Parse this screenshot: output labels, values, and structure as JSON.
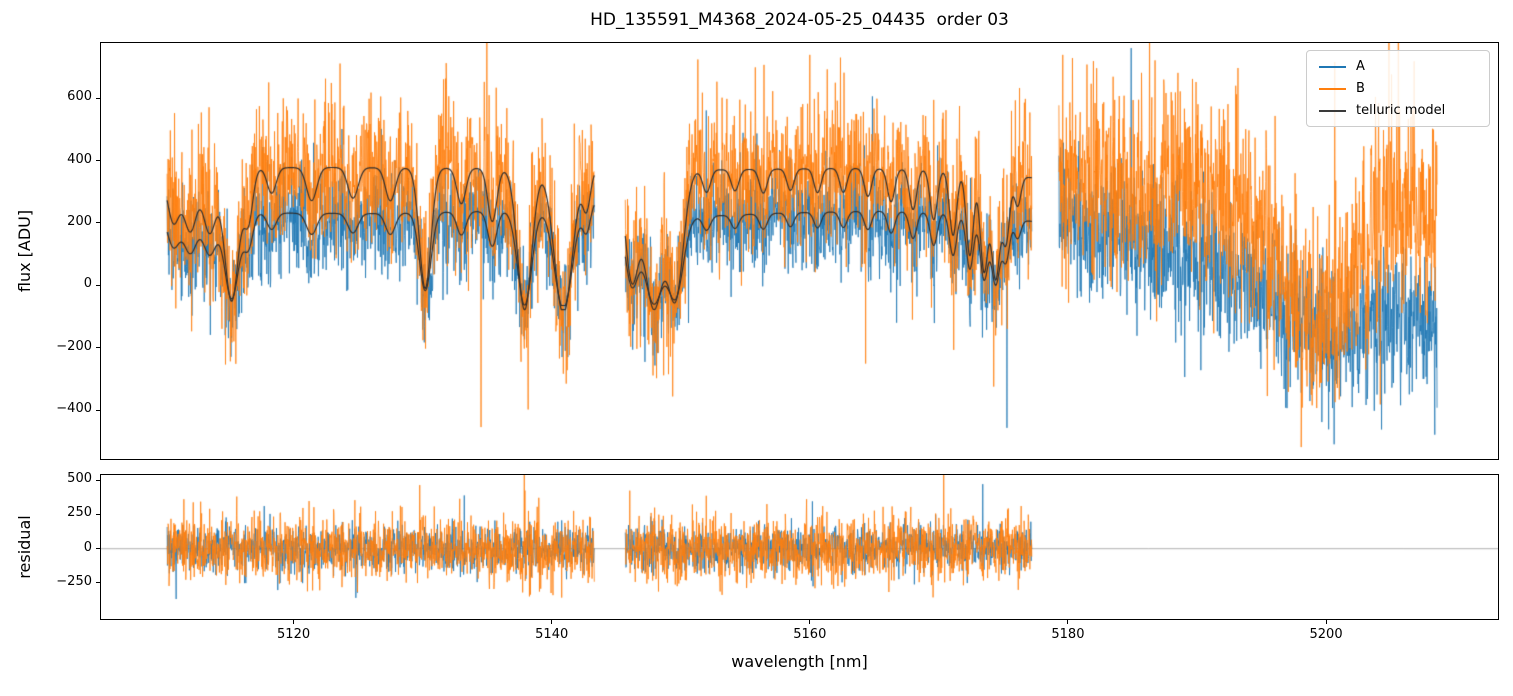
{
  "chart_data": {
    "type": "line",
    "title": "HD_135591_M4368_2024-05-25_04435  order 03",
    "xlabel": "wavelength [nm]",
    "xlim": [
      5105,
      5213.4
    ],
    "xticks": [
      {
        "v": 5120,
        "label": "5120"
      },
      {
        "v": 5140,
        "label": "5140"
      },
      {
        "v": 5160,
        "label": "5160"
      },
      {
        "v": 5180,
        "label": "5180"
      },
      {
        "v": 5200,
        "label": "5200"
      }
    ],
    "panels": {
      "flux": {
        "ylabel": "flux [ADU]",
        "ylim": [
          -560,
          780
        ],
        "yticks": [
          {
            "v": 600,
            "label": "600"
          },
          {
            "v": 400,
            "label": "400"
          },
          {
            "v": 200,
            "label": "200"
          },
          {
            "v": 0,
            "label": "0"
          },
          {
            "v": -200,
            "label": "−200"
          },
          {
            "v": -400,
            "label": "−400"
          }
        ]
      },
      "residual": {
        "ylabel": "residual",
        "ylim": [
          -520,
          545
        ],
        "yticks": [
          {
            "v": 500,
            "label": "500"
          },
          {
            "v": 250,
            "label": "250"
          },
          {
            "v": 0,
            "label": "0"
          },
          {
            "v": -250,
            "label": "−250"
          }
        ]
      }
    },
    "legend": [
      {
        "label": "A",
        "color": "#1f77b4"
      },
      {
        "label": "B",
        "color": "#ff7f0e"
      },
      {
        "label": "telluric model",
        "color": "#3a3a3a"
      }
    ],
    "zero_line_color": "#9a9a9a",
    "sampling": {
      "step_nm": 0.025,
      "seed": 12
    },
    "segments": [
      {
        "x_start": 5110.2,
        "x_end": 5143.3,
        "has_model": true,
        "has_residual": true
      },
      {
        "x_start": 5145.7,
        "x_end": 5177.2,
        "has_model": true,
        "has_residual": true
      },
      {
        "x_start": 5179.3,
        "x_end": 5208.6,
        "has_model": false,
        "has_residual": false
      }
    ],
    "telluric_lines": [
      [
        5110.7,
        0.4,
        0.45
      ],
      [
        5112.0,
        0.48,
        0.5
      ],
      [
        5113.5,
        0.5,
        0.5
      ],
      [
        5115.2,
        1.05,
        0.55
      ],
      [
        5116.5,
        0.4,
        0.35
      ],
      [
        5118.3,
        0.2,
        0.35
      ],
      [
        5121.4,
        0.26,
        0.4
      ],
      [
        5124.6,
        0.24,
        0.4
      ],
      [
        5127.5,
        0.26,
        0.38
      ],
      [
        5130.2,
        0.95,
        0.45
      ],
      [
        5133.0,
        0.28,
        0.35
      ],
      [
        5135.4,
        0.42,
        0.35
      ],
      [
        5137.9,
        1.12,
        0.55
      ],
      [
        5140.9,
        1.15,
        0.7
      ],
      [
        5142.7,
        0.3,
        0.3
      ],
      [
        5146.2,
        0.85,
        0.5
      ],
      [
        5147.9,
        1.1,
        0.7
      ],
      [
        5149.6,
        1.0,
        0.6
      ],
      [
        5152.0,
        0.18,
        0.3
      ],
      [
        5154.2,
        0.17,
        0.3
      ],
      [
        5156.4,
        0.19,
        0.3
      ],
      [
        5158.5,
        0.17,
        0.28
      ],
      [
        5160.6,
        0.19,
        0.28
      ],
      [
        5162.6,
        0.19,
        0.28
      ],
      [
        5164.5,
        0.22,
        0.28
      ],
      [
        5166.3,
        0.26,
        0.28
      ],
      [
        5168.0,
        0.32,
        0.28
      ],
      [
        5169.6,
        0.4,
        0.28
      ],
      [
        5171.1,
        0.52,
        0.28
      ],
      [
        5172.4,
        0.68,
        0.28
      ],
      [
        5173.5,
        0.8,
        0.3
      ],
      [
        5174.4,
        0.86,
        0.32
      ],
      [
        5175.2,
        0.55,
        0.28
      ],
      [
        5176.1,
        0.25,
        0.25
      ]
    ],
    "series": {
      "A": {
        "color": "#1f77b4",
        "offset": -30,
        "noise_sigma": 82,
        "noise_sigma_seg3": 115,
        "continuum_scale": [
          [
            5109,
            255
          ],
          [
            5116,
            262
          ],
          [
            5126,
            260
          ],
          [
            5136,
            268
          ],
          [
            5143.3,
            300
          ],
          [
            5145.7,
            255
          ],
          [
            5151,
            250
          ],
          [
            5158,
            262
          ],
          [
            5165,
            268
          ],
          [
            5171,
            262
          ],
          [
            5177.2,
            235
          ]
        ],
        "seg3_baseline": [
          [
            5179.3,
            190
          ],
          [
            5184,
            160
          ],
          [
            5188,
            110
          ],
          [
            5192,
            40
          ],
          [
            5195,
            -30
          ],
          [
            5198,
            -110
          ],
          [
            5201,
            -170
          ],
          [
            5203,
            -140
          ],
          [
            5206,
            -100
          ],
          [
            5208.6,
            -130
          ]
        ]
      },
      "B": {
        "color": "#ff7f0e",
        "offset": -30,
        "noise_sigma": 118,
        "noise_sigma_seg3": 160,
        "continuum_scale": [
          [
            5109,
            380
          ],
          [
            5114,
            405
          ],
          [
            5122,
            408
          ],
          [
            5134,
            405
          ],
          [
            5143.3,
            400
          ],
          [
            5145.7,
            395
          ],
          [
            5152,
            400
          ],
          [
            5163,
            405
          ],
          [
            5170,
            400
          ],
          [
            5177.2,
            375
          ]
        ],
        "seg3_baseline": [
          [
            5179.3,
            330
          ],
          [
            5186,
            335
          ],
          [
            5191,
            320
          ],
          [
            5194,
            240
          ],
          [
            5196,
            90
          ],
          [
            5198,
            -60
          ],
          [
            5199.5,
            -120
          ],
          [
            5201,
            -70
          ],
          [
            5202.5,
            80
          ],
          [
            5204,
            200
          ],
          [
            5206,
            230
          ],
          [
            5208.6,
            190
          ]
        ]
      },
      "telluric_model": {
        "color": "#2e2e2e"
      }
    }
  }
}
